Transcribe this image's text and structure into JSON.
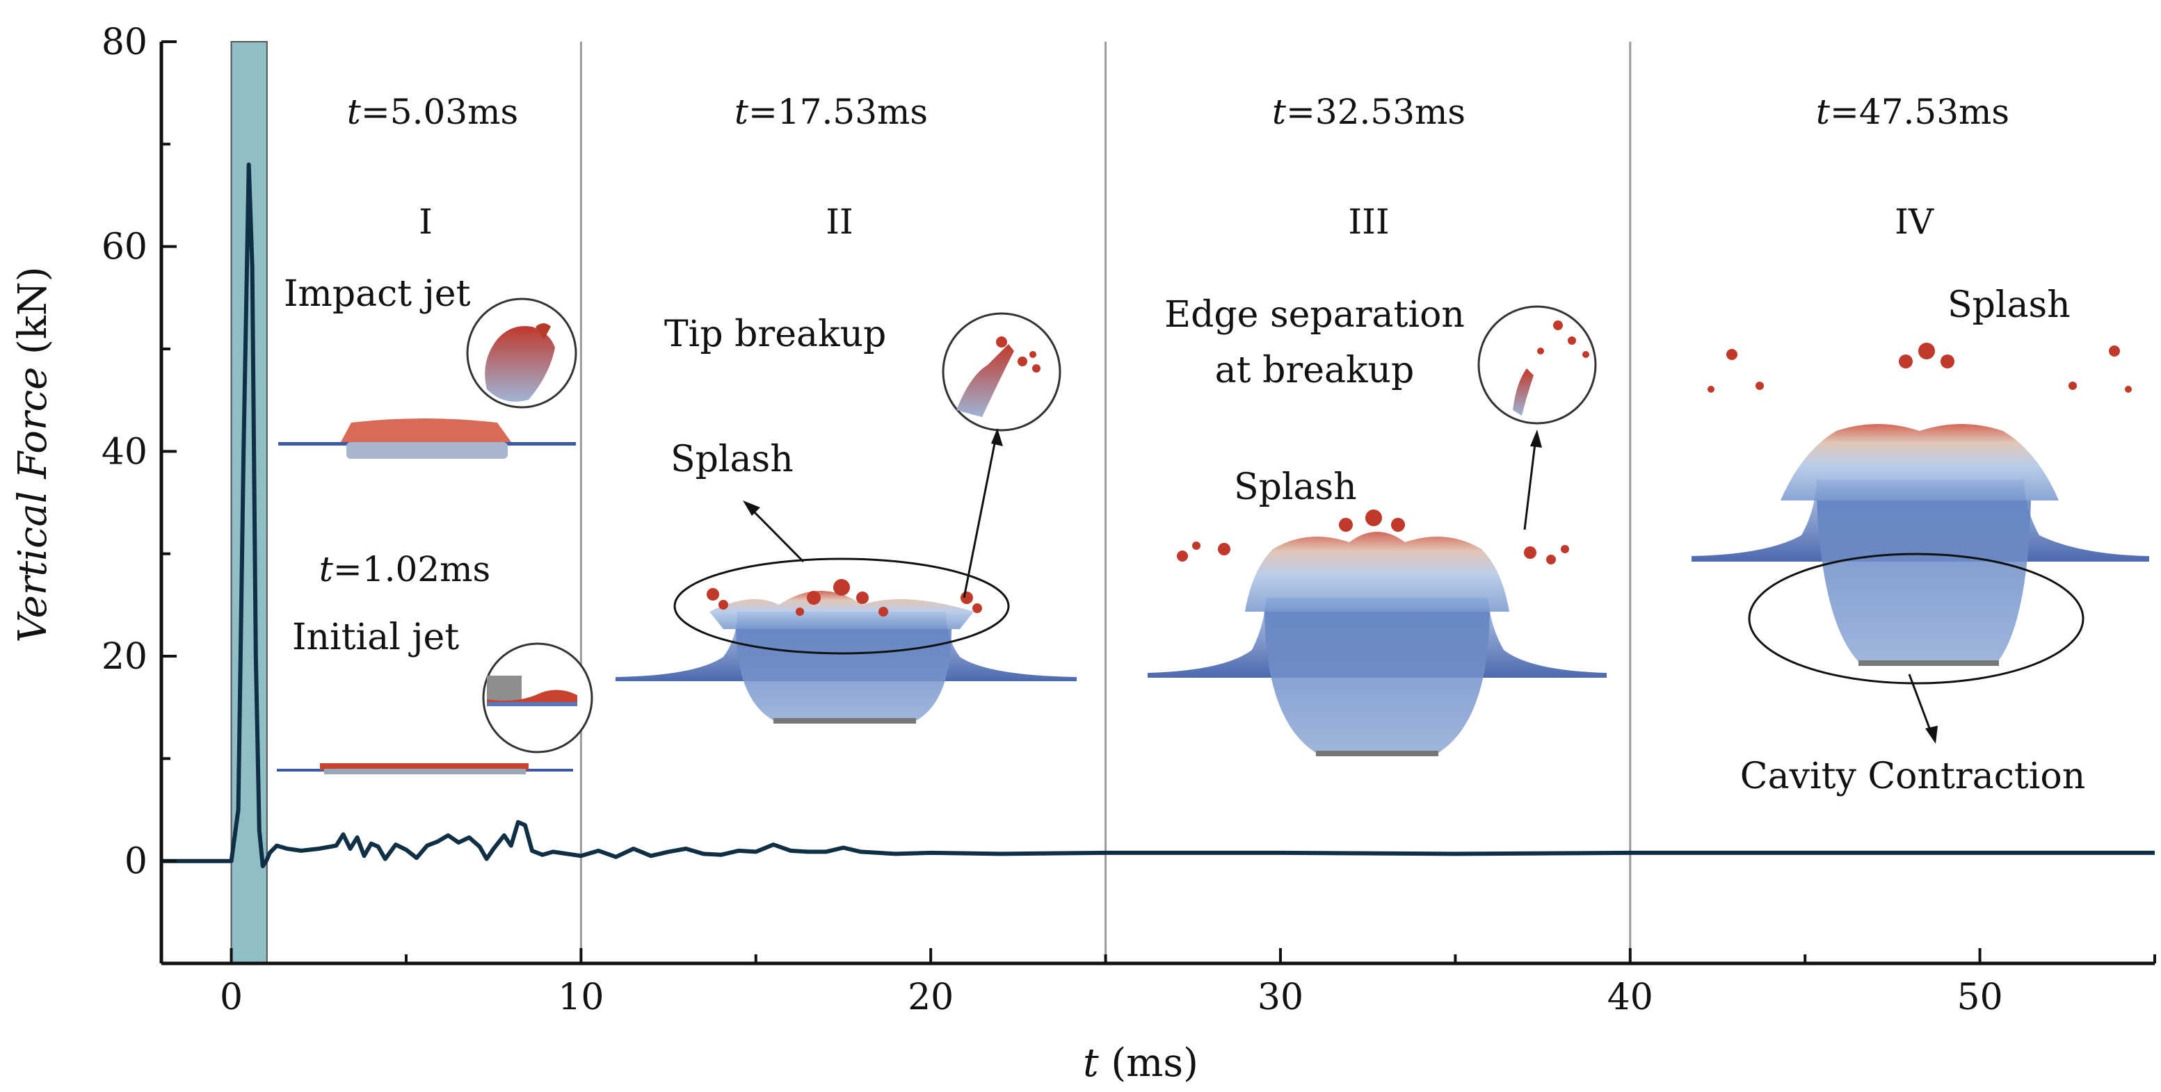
{
  "chart_data": {
    "type": "line",
    "title": "",
    "xlabel": {
      "symbol": "t",
      "unit": " (ms)"
    },
    "ylabel": {
      "symbol": "Vertical Force",
      "unit": " (kN)"
    },
    "xlim": [
      -2,
      55
    ],
    "ylim": [
      -10,
      80
    ],
    "xticks": [
      0,
      10,
      20,
      30,
      40,
      50
    ],
    "yticks": [
      0,
      20,
      40,
      60,
      80
    ],
    "highlight_band": {
      "x0": 0,
      "x1": 1.02,
      "color": "#8fbfc4"
    },
    "phase_boundaries": [
      10,
      25,
      40
    ],
    "series": [
      {
        "name": "Vertical Force",
        "color": "#0f2f44",
        "x": [
          -2,
          0,
          0.2,
          0.35,
          0.5,
          0.6,
          0.7,
          0.8,
          0.9,
          1.0,
          1.1,
          1.3,
          1.6,
          2.0,
          2.5,
          3.0,
          3.2,
          3.4,
          3.6,
          3.8,
          4.0,
          4.2,
          4.4,
          4.7,
          5.0,
          5.3,
          5.6,
          5.9,
          6.2,
          6.5,
          6.8,
          7.1,
          7.3,
          7.5,
          7.8,
          8.0,
          8.2,
          8.4,
          8.6,
          8.9,
          9.2,
          9.6,
          10.0,
          10.5,
          11.0,
          11.5,
          12.0,
          12.5,
          13.0,
          13.5,
          14.0,
          14.5,
          15.0,
          15.5,
          16.0,
          16.5,
          17.0,
          17.5,
          18.0,
          18.5,
          19.0,
          20.0,
          22.0,
          25.0,
          30.0,
          35.0,
          40.0,
          45.0,
          50.0,
          55.0
        ],
        "y": [
          0,
          0,
          5,
          40,
          68,
          58,
          20,
          3,
          -0.5,
          0,
          0.8,
          1.5,
          1.2,
          1.0,
          1.2,
          1.5,
          2.6,
          1.2,
          2.3,
          0.5,
          1.7,
          1.4,
          0.2,
          1.6,
          1.1,
          0.3,
          1.5,
          1.9,
          2.5,
          1.8,
          2.3,
          1.4,
          0.2,
          1.2,
          2.5,
          1.5,
          3.8,
          3.5,
          1.0,
          0.6,
          0.9,
          0.7,
          0.5,
          1.0,
          0.4,
          1.2,
          0.5,
          0.9,
          1.2,
          0.7,
          0.6,
          1.0,
          0.9,
          1.6,
          1.0,
          0.9,
          0.9,
          1.3,
          0.9,
          0.8,
          0.7,
          0.8,
          0.7,
          0.8,
          0.8,
          0.7,
          0.8,
          0.8,
          0.8,
          0.8
        ]
      }
    ],
    "annotations": {
      "phases": [
        "I",
        "II",
        "III",
        "IV"
      ],
      "times": {
        "t1": {
          "symbol": "t",
          "value": "=5.03ms"
        },
        "t2": {
          "symbol": "t",
          "value": "=17.53ms"
        },
        "t3": {
          "symbol": "t",
          "value": "=32.53ms"
        },
        "t4": {
          "symbol": "t",
          "value": "=47.53ms"
        },
        "t0": {
          "symbol": "t",
          "value": "=1.02ms"
        }
      },
      "labels": {
        "impact_jet": "Impact jet",
        "initial_jet": "Initial jet",
        "tip_breakup": "Tip breakup",
        "splash_2": "Splash",
        "edge_separation_1": "Edge separation",
        "edge_separation_2": "at breakup",
        "splash_3": "Splash",
        "splash_4": "Splash",
        "cavity_contraction": "Cavity Contraction"
      }
    }
  }
}
